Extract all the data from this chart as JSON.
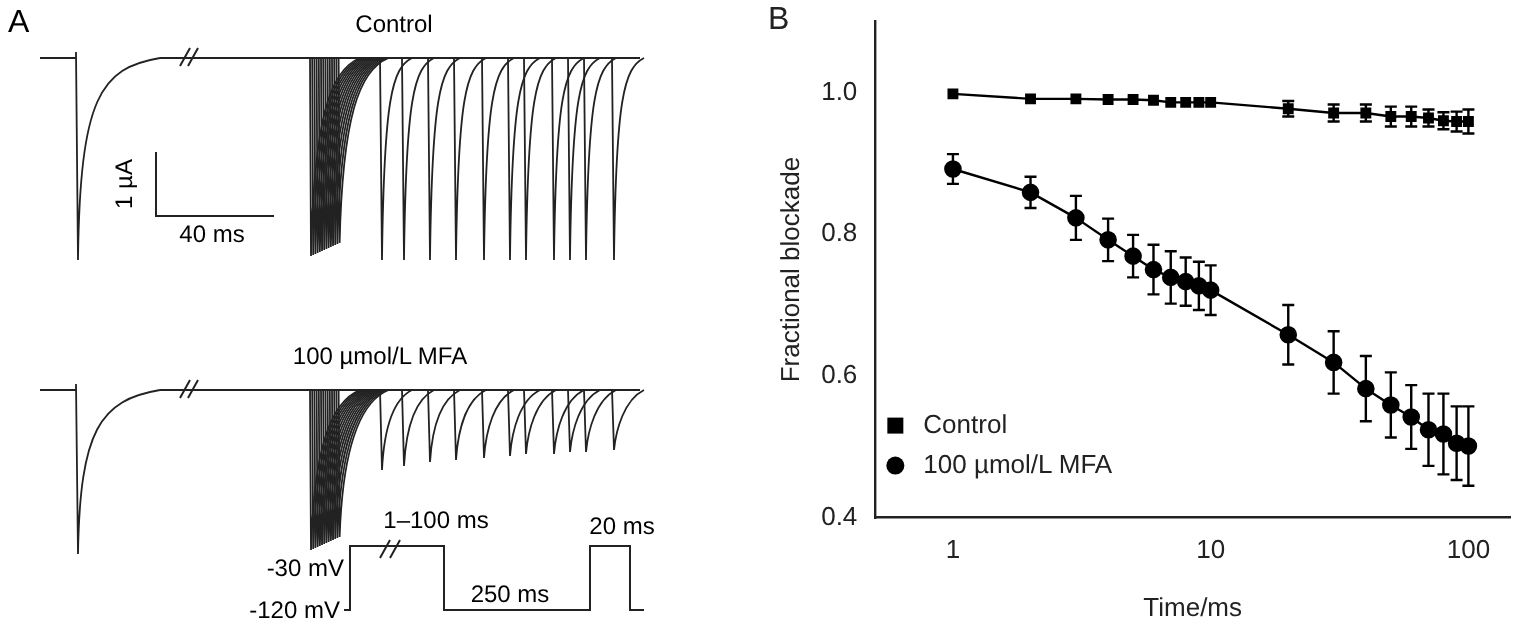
{
  "chart_data": [
    {
      "type": "other",
      "title": "A",
      "annotations": [
        "Control",
        "100 µmol/L MFA",
        "1 µA",
        "40 ms",
        "1–100 ms",
        "20 ms",
        "-30 mV",
        "250 ms",
        "-120 mV"
      ]
    },
    {
      "type": "line",
      "title": "B",
      "xlabel": "Time/ms",
      "ylabel": "Fractional blockade",
      "log": "x",
      "xlim": [
        0.5,
        145
      ],
      "xticks": [
        1,
        10,
        100
      ],
      "ylim": [
        0.4,
        1.1
      ],
      "yticks": [
        0.4,
        0.6,
        0.8,
        {
          "value": 1,
          "label": "1.0"
        }
      ],
      "legend": "bottom left",
      "grid": false,
      "x": [
        1,
        2,
        3,
        4,
        5,
        6,
        7,
        8,
        9,
        10,
        20,
        30,
        40,
        50,
        60,
        70,
        80,
        90,
        100
      ],
      "series": [
        {
          "name": "Control",
          "color": "#000000",
          "marker": "square",
          "values": [
            0.998,
            0.991,
            0.991,
            0.99,
            0.99,
            0.989,
            0.986,
            0.986,
            0.986,
            0.986,
            0.977,
            0.971,
            0.971,
            0.966,
            0.966,
            0.964,
            0.96,
            0.959,
            0.959
          ],
          "errors": [
            null,
            null,
            null,
            null,
            null,
            null,
            null,
            null,
            null,
            null,
            0.011,
            0.012,
            0.012,
            0.014,
            0.014,
            0.012,
            0.012,
            0.014,
            0.017
          ]
        },
        {
          "name": "100 µmol/L MFA",
          "color": "#000000",
          "marker": "circle",
          "values": [
            0.892,
            0.859,
            0.823,
            0.792,
            0.769,
            0.75,
            0.739,
            0.733,
            0.727,
            0.721,
            0.658,
            0.619,
            0.582,
            0.559,
            0.542,
            0.524,
            0.518,
            0.505,
            0.501
          ],
          "errors": [
            0.021,
            0.022,
            0.031,
            0.03,
            0.03,
            0.035,
            0.037,
            0.034,
            0.034,
            0.035,
            0.042,
            0.044,
            0.046,
            0.046,
            0.045,
            0.051,
            0.057,
            0.052,
            0.056
          ]
        }
      ]
    }
  ]
}
